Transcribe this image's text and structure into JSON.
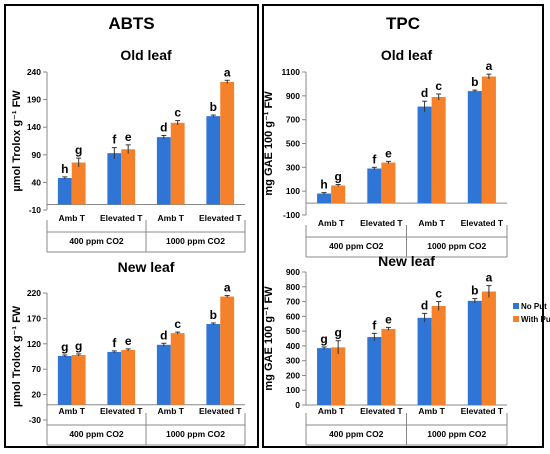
{
  "panels": [
    {
      "title": "ABTS"
    },
    {
      "title": "TPC"
    }
  ],
  "legend": {
    "items": [
      {
        "name": "No Put",
        "color": "#2e75d6"
      },
      {
        "name": "With Put",
        "color": "#f5822b"
      }
    ],
    "placement": "right"
  },
  "chart_data": [
    {
      "type": "bar",
      "title": "Old leaf",
      "ylabel": "µmol Trolox g⁻¹ FW",
      "ylim": [
        -10,
        240
      ],
      "yticks": [
        -10,
        40,
        90,
        140,
        190,
        240
      ],
      "categories": [
        "Amb T",
        "Elevated T",
        "Amb T",
        "Elevated T"
      ],
      "groups": [
        "400 ppm CO2",
        "1000 ppm CO2"
      ],
      "series": [
        {
          "name": "No Put",
          "values": [
            48,
            93,
            122,
            160
          ],
          "errors": [
            2,
            10,
            3,
            2
          ],
          "labels": [
            "h",
            "f",
            "d",
            "b"
          ]
        },
        {
          "name": "With Put",
          "values": [
            76,
            100,
            148,
            222
          ],
          "errors": [
            8,
            8,
            4,
            3
          ],
          "labels": [
            "g",
            "e",
            "c",
            "a"
          ]
        }
      ]
    },
    {
      "type": "bar",
      "title": "New leaf",
      "ylabel": "µmol Trolox g⁻¹ FW",
      "ylim": [
        -30,
        220
      ],
      "yticks": [
        -30,
        20,
        70,
        120,
        170,
        220
      ],
      "categories": [
        "Amb T",
        "Elevated T",
        "Amb T",
        "Elevated T"
      ],
      "groups": [
        "400 ppm CO2",
        "1000 ppm CO2"
      ],
      "series": [
        {
          "name": "No Put",
          "values": [
            96,
            104,
            118,
            159
          ],
          "errors": [
            2,
            2,
            3,
            2
          ],
          "labels": [
            "g",
            "f",
            "d",
            "b"
          ]
        },
        {
          "name": "With Put",
          "values": [
            98,
            108,
            141,
            213
          ],
          "errors": [
            2,
            2,
            2,
            2
          ],
          "labels": [
            "g",
            "e",
            "c",
            "a"
          ]
        }
      ]
    },
    {
      "type": "bar",
      "title": "Old leaf",
      "ylabel": "mg GAE 100 g⁻¹ FW",
      "ylim": [
        -100,
        1100
      ],
      "yticks": [
        -100,
        100,
        300,
        500,
        700,
        900,
        1100
      ],
      "categories": [
        "Amb T",
        "Elevated T",
        "Amb T",
        "Elevated T"
      ],
      "groups": [
        "400 ppm CO2",
        "1000 ppm CO2"
      ],
      "series": [
        {
          "name": "No Put",
          "values": [
            80,
            290,
            810,
            940
          ],
          "errors": [
            8,
            10,
            45,
            8
          ],
          "labels": [
            "h",
            "f",
            "d",
            "b"
          ]
        },
        {
          "name": "With Put",
          "values": [
            148,
            340,
            890,
            1062
          ],
          "errors": [
            8,
            10,
            25,
            20
          ],
          "labels": [
            "g",
            "e",
            "c",
            "a"
          ]
        }
      ]
    },
    {
      "type": "bar",
      "title": "New leaf",
      "ylabel": "mg GAE 100 g⁻¹ FW",
      "ylim": [
        0,
        900
      ],
      "yticks": [
        0,
        100,
        200,
        300,
        400,
        500,
        600,
        700,
        800,
        900
      ],
      "categories": [
        "Amb T",
        "Elevated T",
        "Amb T",
        "Elevated T"
      ],
      "groups": [
        "400 ppm CO2",
        "1000 ppm CO2"
      ],
      "series": [
        {
          "name": "No Put",
          "values": [
            385,
            460,
            590,
            705
          ],
          "errors": [
            8,
            25,
            30,
            15
          ],
          "labels": [
            "g",
            "f",
            "d",
            "b"
          ]
        },
        {
          "name": "With Put",
          "values": [
            390,
            515,
            670,
            768
          ],
          "errors": [
            45,
            10,
            30,
            40
          ],
          "labels": [
            "g",
            "e",
            "c",
            "a"
          ]
        }
      ]
    }
  ]
}
